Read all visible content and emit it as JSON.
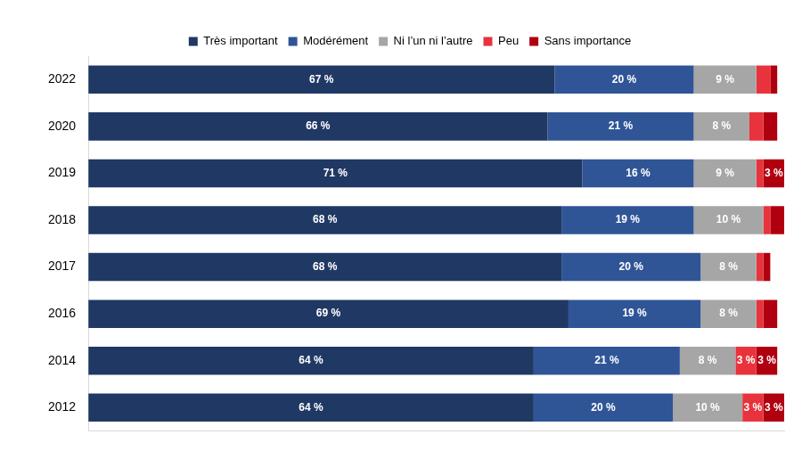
{
  "chart_data": {
    "type": "bar",
    "orientation": "horizontal",
    "stacked": true,
    "data_labels": true,
    "legend": "top",
    "grid": false,
    "tick_labels": "y",
    "xlim": [
      0,
      100
    ],
    "categories": [
      "2022",
      "2020",
      "2019",
      "2018",
      "2017",
      "2016",
      "2014",
      "2012"
    ],
    "series": [
      {
        "name": "Très important",
        "color": "#203864",
        "values": [
          67,
          66,
          71,
          68,
          68,
          69,
          64,
          64
        ],
        "value_labels": [
          "67 %",
          "66 %",
          "71 %",
          "68 %",
          "68 %",
          "69 %",
          "64 %",
          "64 %"
        ]
      },
      {
        "name": "Modérément",
        "color": "#2f5597",
        "values": [
          20,
          21,
          16,
          19,
          20,
          19,
          21,
          20
        ],
        "value_labels": [
          "20 %",
          "21 %",
          "16 %",
          "19 %",
          "20 %",
          "19 %",
          "21 %",
          "20 %"
        ]
      },
      {
        "name": "Ni l’un ni l’autre",
        "color": "#a6a6a6",
        "values": [
          9,
          8,
          9,
          10,
          8,
          8,
          8,
          10
        ],
        "value_labels": [
          "9 %",
          "8 %",
          "9 %",
          "10 %",
          "8 %",
          "8 %",
          "8 %",
          "10 %"
        ]
      },
      {
        "name": "Peu",
        "color": "#e8323c",
        "values": [
          2,
          2,
          1,
          1,
          1,
          1,
          3,
          3
        ],
        "value_labels": [
          null,
          null,
          null,
          null,
          null,
          null,
          "3 %",
          "3 %"
        ]
      },
      {
        "name": "Sans importance",
        "color": "#b00010",
        "values": [
          1,
          2,
          3,
          2,
          1,
          2,
          3,
          3
        ],
        "value_labels": [
          null,
          null,
          "3 %",
          null,
          null,
          null,
          "3 %",
          "3 %"
        ]
      }
    ]
  }
}
